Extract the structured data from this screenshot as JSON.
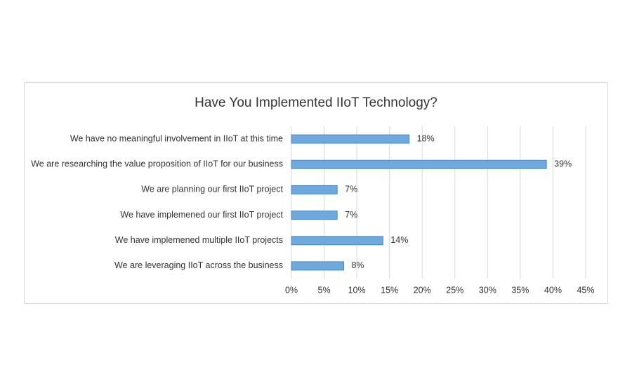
{
  "chart_data": {
    "type": "bar",
    "orientation": "horizontal",
    "title": "Have You Implemented IIoT Technology?",
    "categories": [
      "We have no meaningful involvement in IIoT at this time",
      "We are researching the value proposition of IIoT for our business",
      "We are planning our first IIoT project",
      "We have implemened our first IIoT project",
      "We have implemened multiple IIoT projects",
      "We are leveraging IIoT across the business"
    ],
    "values": [
      18,
      39,
      7,
      7,
      14,
      8
    ],
    "value_labels": [
      "18%",
      "39%",
      "7%",
      "7%",
      "14%",
      "8%"
    ],
    "color": "#6fa8dc",
    "xlim": [
      0,
      45
    ],
    "xticks": [
      {
        "value": 0,
        "label": "0%"
      },
      {
        "value": 5,
        "label": "5%"
      },
      {
        "value": 10,
        "label": "10%"
      },
      {
        "value": 15,
        "label": "15%"
      },
      {
        "value": 20,
        "label": "20%"
      },
      {
        "value": 25,
        "label": "25%"
      },
      {
        "value": 30,
        "label": "30%"
      },
      {
        "value": 35,
        "label": "35%"
      },
      {
        "value": 40,
        "label": "40%"
      },
      {
        "value": 45,
        "label": "45%"
      }
    ],
    "grid": true
  }
}
